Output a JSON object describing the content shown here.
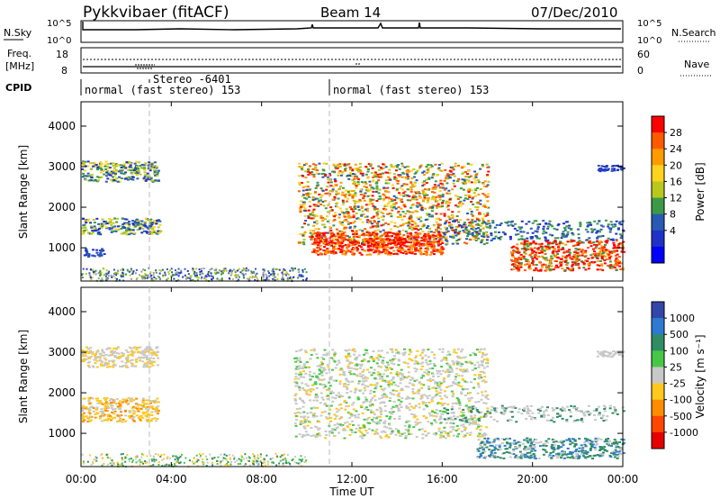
{
  "header": {
    "station": "Pykkvibaer (fitACF)",
    "beam": "Beam 14",
    "date": "07/Dec/2010"
  },
  "status_panels": {
    "nsky": {
      "label": "N.Sky",
      "left_ticks": [
        "10^5",
        "10^0"
      ],
      "right_label": "N.Search",
      "right_ticks": [
        "10^5",
        "10^0"
      ]
    },
    "freq": {
      "label_line1": "Freq.",
      "label_line2": "[MHz]",
      "left_ticks": [
        "18",
        "8"
      ],
      "right_label": "Nave",
      "right_ticks": [
        "60",
        "0"
      ]
    },
    "cpid": {
      "label": "CPID",
      "segments": [
        {
          "text": "normal (fast stereo) 153"
        },
        {
          "text": "Stereo -6401"
        },
        {
          "text": "normal (fast stereo) 153"
        }
      ]
    }
  },
  "x_axis": {
    "label": "Time UT",
    "ticks": [
      "00:00",
      "04:00",
      "08:00",
      "12:00",
      "16:00",
      "20:00",
      "00:00"
    ]
  },
  "chart_data": [
    {
      "type": "heatmap",
      "quantity": "Power",
      "colorbar_label": "Power [dB]",
      "colorbar_ticks": [
        "28",
        "24",
        "20",
        "16",
        "12",
        "8",
        "4"
      ],
      "colorbar_colors": [
        "#ff0000",
        "#ff5a00",
        "#ff9a00",
        "#ffd21e",
        "#b9c81e",
        "#3c9a46",
        "#285ab4",
        "#1e32c8",
        "#0000ff"
      ],
      "ylabel": "Slant Range [km]",
      "yticks": [
        1000,
        2000,
        3000,
        4000
      ],
      "ylim": [
        180,
        4600
      ],
      "xlim": [
        0,
        24
      ]
    },
    {
      "type": "heatmap",
      "quantity": "Velocity",
      "colorbar_label": "Velocity [m s⁻¹]",
      "colorbar_ticks": [
        "1000",
        "500",
        "100",
        "25",
        "-25",
        "-100",
        "-500",
        "-1000"
      ],
      "colorbar_colors": [
        "#3246aa",
        "#2e7ad2",
        "#2f8c64",
        "#46c846",
        "#c8c8c8",
        "#ffc81e",
        "#ff8c00",
        "#ff4600",
        "#e60000"
      ],
      "ylabel": "Slant Range [km]",
      "yticks": [
        1000,
        2000,
        3000,
        4000
      ],
      "ylim": [
        180,
        4600
      ],
      "xlim": [
        0,
        24
      ]
    }
  ]
}
